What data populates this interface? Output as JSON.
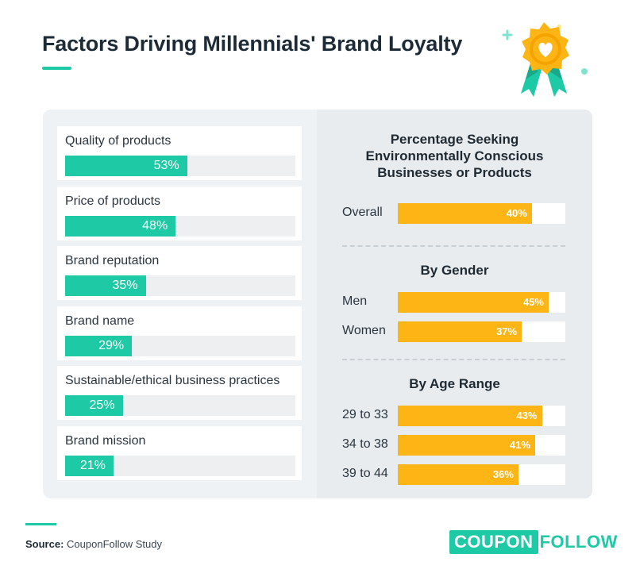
{
  "title": "Factors Driving Millennials' Brand Loyalty",
  "source_label": "Source:",
  "source_text": "CouponFollow Study",
  "logo": {
    "boxed": "COUPON",
    "plain": "FOLLOW"
  },
  "badge_icon": "award-ribbon-heart-icon",
  "colors": {
    "teal": "#1ec9a6",
    "gold": "#fdb515",
    "title": "#1d2b36"
  },
  "chart_data": [
    {
      "type": "bar",
      "orientation": "horizontal",
      "title": "Factors Driving Millennials' Brand Loyalty",
      "categories": [
        "Quality of products",
        "Price of products",
        "Brand reputation",
        "Brand name",
        "Sustainable/ethical business practices",
        "Brand mission"
      ],
      "values": [
        53,
        48,
        35,
        29,
        25,
        21
      ],
      "value_labels": [
        "53%",
        "48%",
        "35%",
        "29%",
        "25%",
        "21%"
      ],
      "unit": "%",
      "xlim": [
        0,
        100
      ],
      "color": "#1ec9a6"
    },
    {
      "type": "bar",
      "orientation": "horizontal",
      "title": "Percentage Seeking Environmentally Conscious Businesses or Products",
      "title_lines": [
        "Percentage Seeking",
        "Environmentally Conscious",
        "Businesses or Products"
      ],
      "groups": [
        {
          "heading": "",
          "categories": [
            "Overall"
          ],
          "values": [
            40
          ],
          "value_labels": [
            "40%"
          ]
        },
        {
          "heading": "By Gender",
          "categories": [
            "Men",
            "Women"
          ],
          "values": [
            45,
            37
          ],
          "value_labels": [
            "45%",
            "37%"
          ]
        },
        {
          "heading": "By Age Range",
          "categories": [
            "29 to 33",
            "34 to 38",
            "39 to 44"
          ],
          "values": [
            43,
            41,
            36
          ],
          "value_labels": [
            "43%",
            "41%",
            "36%"
          ]
        }
      ],
      "unit": "%",
      "xlim": [
        0,
        50
      ],
      "color": "#fdb515"
    }
  ]
}
